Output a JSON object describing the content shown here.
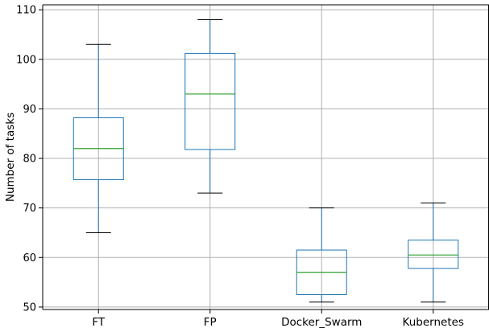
{
  "chart_data": {
    "type": "box",
    "title": "",
    "xlabel": "",
    "ylabel": "Number of tasks",
    "ylim": [
      49.5,
      111
    ],
    "yticks": [
      50,
      60,
      70,
      80,
      90,
      100,
      110
    ],
    "grid": true,
    "categories": [
      "FT",
      "FP",
      "Docker_Swarm",
      "Kubernetes"
    ],
    "boxes": [
      {
        "label": "FT",
        "whisker_low": 65,
        "q1": 75.7,
        "median": 82,
        "q3": 88.2,
        "whisker_high": 103
      },
      {
        "label": "FP",
        "whisker_low": 73,
        "q1": 81.8,
        "median": 93,
        "q3": 101.2,
        "whisker_high": 108
      },
      {
        "label": "Docker_Swarm",
        "whisker_low": 51,
        "q1": 52.5,
        "median": 57,
        "q3": 61.5,
        "whisker_high": 70
      },
      {
        "label": "Kubernetes",
        "whisker_low": 51,
        "q1": 57.8,
        "median": 60.5,
        "q3": 63.5,
        "whisker_high": 71
      }
    ],
    "colors": {
      "box": "#1f77b4",
      "median": "#2ca02c",
      "cap": "#000000",
      "grid": "#b0b0b0",
      "axis": "#000000"
    }
  }
}
